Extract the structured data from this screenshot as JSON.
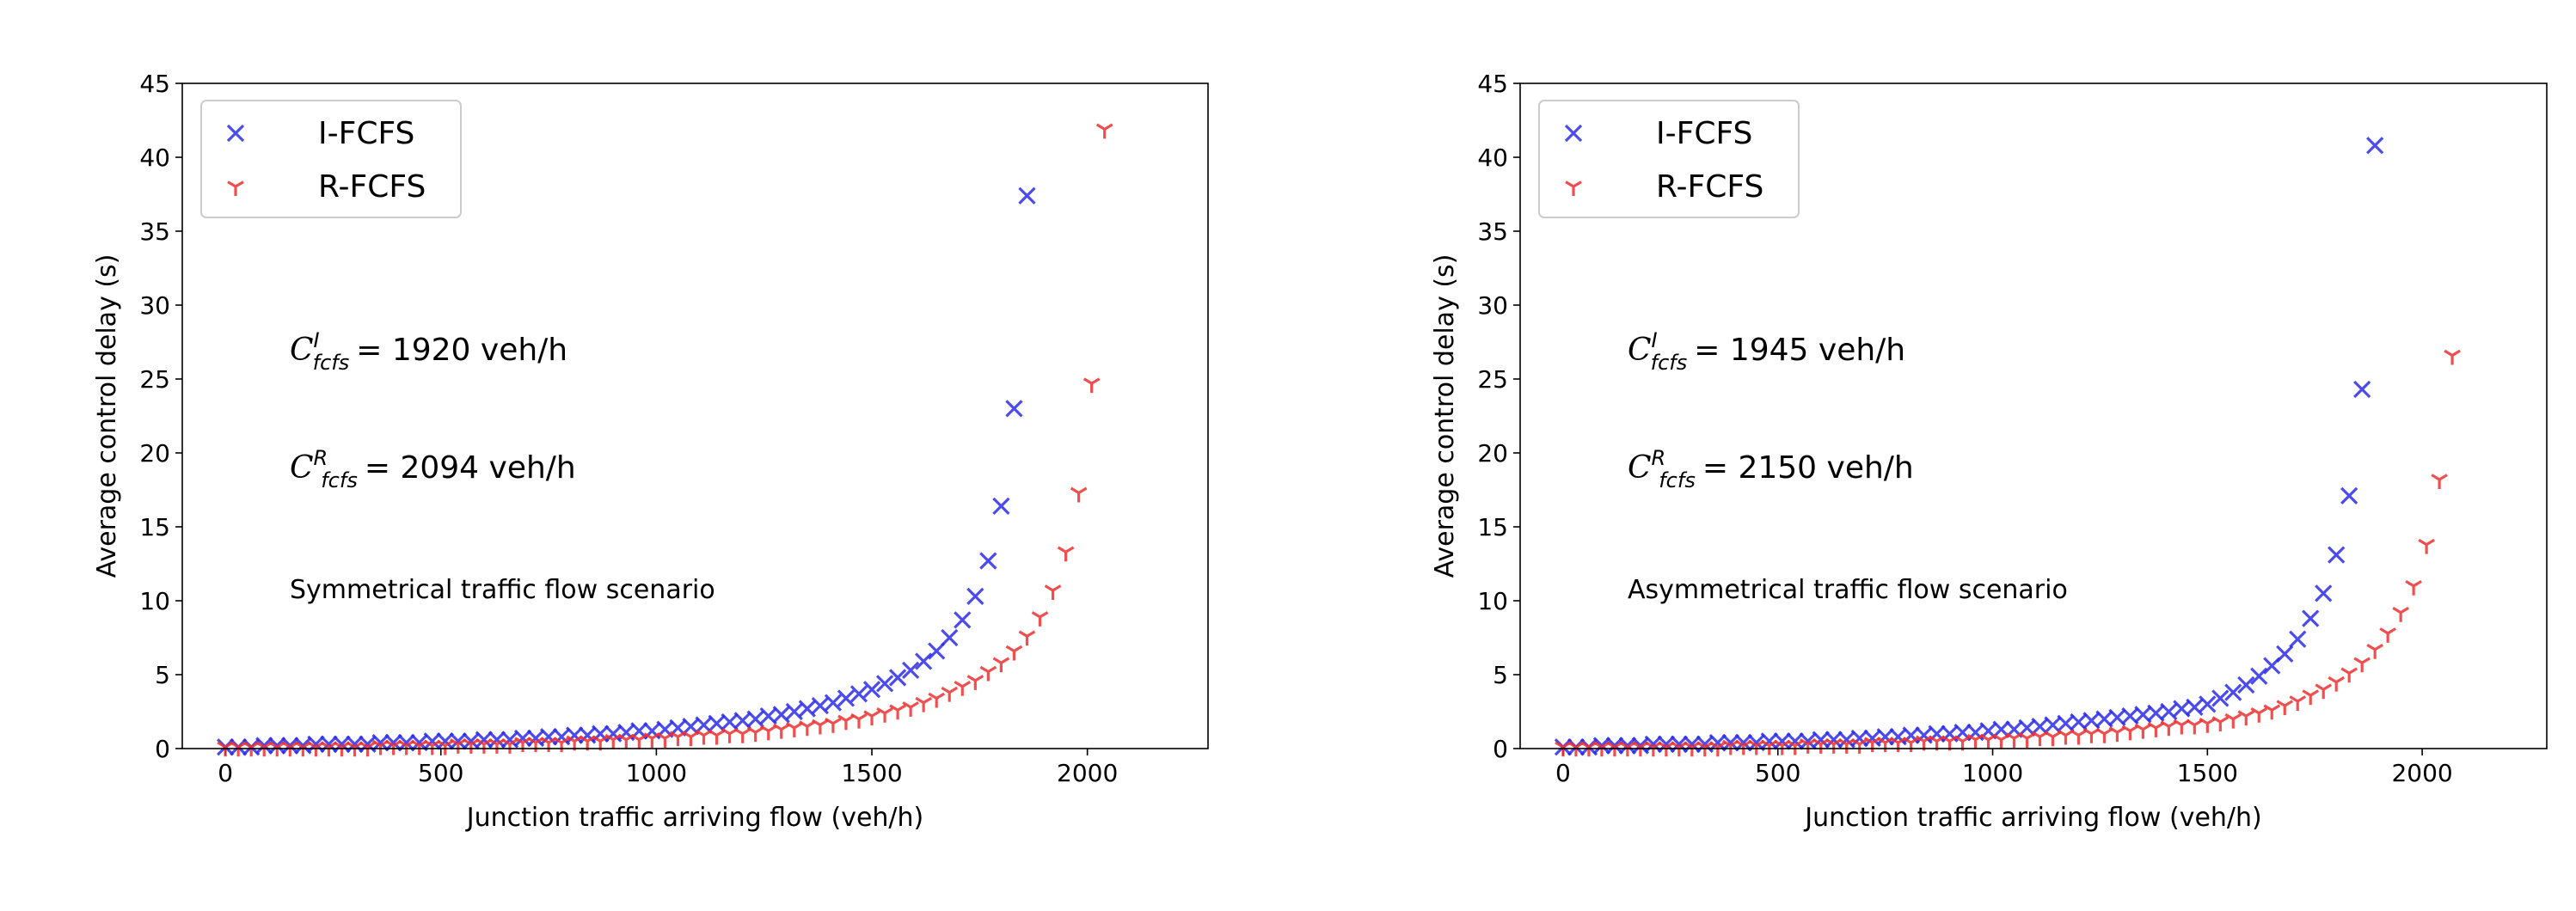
{
  "chart_data": [
    {
      "type": "scatter",
      "xlabel": "Junction traffic arriving flow (veh/h)",
      "ylabel": "Average control delay (s)",
      "x": [
        0,
        30,
        60,
        90,
        120,
        150,
        180,
        210,
        240,
        270,
        300,
        330,
        360,
        390,
        420,
        450,
        480,
        510,
        540,
        570,
        600,
        630,
        660,
        690,
        720,
        750,
        780,
        810,
        840,
        870,
        900,
        930,
        960,
        990,
        1020,
        1050,
        1080,
        1110,
        1140,
        1170,
        1200,
        1230,
        1260,
        1290,
        1320,
        1350,
        1380,
        1410,
        1440,
        1470,
        1500,
        1530,
        1560,
        1590,
        1620,
        1650,
        1680,
        1710,
        1740,
        1770,
        1800,
        1830,
        1860,
        1890,
        1920,
        1950,
        1980,
        2010,
        2040
      ],
      "series": [
        {
          "name": "I-FCFS",
          "color": "#2b2bec",
          "marker": "x",
          "values": [
            0.1,
            0.1,
            0.1,
            0.2,
            0.2,
            0.2,
            0.2,
            0.3,
            0.3,
            0.3,
            0.3,
            0.3,
            0.4,
            0.4,
            0.4,
            0.4,
            0.5,
            0.5,
            0.5,
            0.5,
            0.6,
            0.6,
            0.6,
            0.7,
            0.7,
            0.8,
            0.8,
            0.9,
            0.9,
            1.0,
            1.0,
            1.1,
            1.2,
            1.2,
            1.3,
            1.4,
            1.5,
            1.6,
            1.7,
            1.8,
            1.9,
            2.0,
            2.2,
            2.3,
            2.5,
            2.7,
            2.9,
            3.1,
            3.4,
            3.7,
            4.0,
            4.4,
            4.8,
            5.3,
            5.9,
            6.6,
            7.5,
            8.7,
            10.3,
            12.7,
            16.4,
            23.0,
            37.4,
            null,
            null,
            null,
            null,
            null,
            null
          ]
        },
        {
          "name": "R-FCFS",
          "color": "#ee3030",
          "marker": "tri_down",
          "values": [
            0.1,
            0.1,
            0.1,
            0.1,
            0.1,
            0.1,
            0.1,
            0.1,
            0.1,
            0.1,
            0.1,
            0.1,
            0.2,
            0.2,
            0.2,
            0.2,
            0.2,
            0.2,
            0.3,
            0.3,
            0.3,
            0.3,
            0.3,
            0.4,
            0.4,
            0.4,
            0.4,
            0.5,
            0.5,
            0.5,
            0.6,
            0.6,
            0.6,
            0.7,
            0.7,
            0.8,
            0.8,
            0.9,
            0.9,
            1.0,
            1.0,
            1.1,
            1.2,
            1.3,
            1.4,
            1.5,
            1.6,
            1.7,
            1.9,
            2.0,
            2.2,
            2.4,
            2.6,
            2.8,
            3.1,
            3.4,
            3.8,
            4.2,
            4.6,
            5.2,
            5.8,
            6.6,
            7.6,
            8.9,
            10.7,
            13.3,
            17.3,
            24.7,
            41.9
          ]
        }
      ],
      "xlim": [
        -100,
        2280
      ],
      "ylim": [
        0,
        45
      ],
      "xticks": [
        0,
        500,
        1000,
        1500,
        2000
      ],
      "yticks": [
        0,
        5,
        10,
        15,
        20,
        25,
        30,
        35,
        40,
        45
      ],
      "legend": "upper left",
      "annotations": [
        {
          "symbol": "C",
          "sup": "I",
          "sub": "fcfs",
          "text": "= 1920 veh/h"
        },
        {
          "symbol": "C",
          "sup": "R",
          "sub": "fcfs",
          "text": "= 2094 veh/h"
        },
        {
          "text": "Symmetrical traffic flow scenario"
        }
      ]
    },
    {
      "type": "scatter",
      "xlabel": "Junction traffic arriving flow (veh/h)",
      "ylabel": "Average control delay (s)",
      "x": [
        0,
        30,
        60,
        90,
        120,
        150,
        180,
        210,
        240,
        270,
        300,
        330,
        360,
        390,
        420,
        450,
        480,
        510,
        540,
        570,
        600,
        630,
        660,
        690,
        720,
        750,
        780,
        810,
        840,
        870,
        900,
        930,
        960,
        990,
        1020,
        1050,
        1080,
        1110,
        1140,
        1170,
        1200,
        1230,
        1260,
        1290,
        1320,
        1350,
        1380,
        1410,
        1440,
        1470,
        1500,
        1530,
        1560,
        1590,
        1620,
        1650,
        1680,
        1710,
        1740,
        1770,
        1800,
        1830,
        1860,
        1890,
        1920,
        1950,
        1980,
        2010,
        2040,
        2070
      ],
      "series": [
        {
          "name": "I-FCFS",
          "color": "#2b2bec",
          "marker": "x",
          "values": [
            0.1,
            0.1,
            0.1,
            0.2,
            0.2,
            0.2,
            0.2,
            0.3,
            0.3,
            0.3,
            0.3,
            0.3,
            0.4,
            0.4,
            0.4,
            0.4,
            0.5,
            0.5,
            0.5,
            0.5,
            0.6,
            0.6,
            0.6,
            0.7,
            0.7,
            0.8,
            0.8,
            0.9,
            0.9,
            1.0,
            1.0,
            1.1,
            1.1,
            1.2,
            1.3,
            1.3,
            1.4,
            1.5,
            1.6,
            1.7,
            1.8,
            1.9,
            2.0,
            2.1,
            2.2,
            2.3,
            2.4,
            2.5,
            2.7,
            2.8,
            3.0,
            3.4,
            3.8,
            4.3,
            4.9,
            5.6,
            6.4,
            7.4,
            8.8,
            10.5,
            13.1,
            17.1,
            24.3,
            40.8,
            null,
            null,
            null,
            null,
            null,
            null
          ]
        },
        {
          "name": "R-FCFS",
          "color": "#ee3030",
          "marker": "tri_down",
          "values": [
            0.1,
            0.1,
            0.1,
            0.1,
            0.1,
            0.1,
            0.1,
            0.1,
            0.1,
            0.1,
            0.1,
            0.1,
            0.1,
            0.2,
            0.2,
            0.2,
            0.2,
            0.2,
            0.2,
            0.3,
            0.3,
            0.3,
            0.3,
            0.3,
            0.4,
            0.4,
            0.4,
            0.4,
            0.5,
            0.5,
            0.5,
            0.5,
            0.6,
            0.6,
            0.6,
            0.7,
            0.7,
            0.8,
            0.8,
            0.9,
            0.9,
            1.0,
            1.0,
            1.1,
            1.2,
            1.3,
            1.4,
            1.5,
            1.6,
            1.6,
            1.7,
            1.8,
            2.0,
            2.2,
            2.4,
            2.6,
            2.9,
            3.2,
            3.6,
            4.0,
            4.5,
            5.1,
            5.8,
            6.7,
            7.8,
            9.2,
            11.0,
            13.8,
            18.2,
            26.6
          ]
        }
      ],
      "xlim": [
        -100,
        2290
      ],
      "ylim": [
        0,
        45
      ],
      "xticks": [
        0,
        500,
        1000,
        1500,
        2000
      ],
      "yticks": [
        0,
        5,
        10,
        15,
        20,
        25,
        30,
        35,
        40,
        45
      ],
      "legend": "upper left",
      "annotations": [
        {
          "symbol": "C",
          "sup": "I",
          "sub": "fcfs",
          "text": "= 1945 veh/h"
        },
        {
          "symbol": "C",
          "sup": "R",
          "sub": "fcfs",
          "text": "= 2150 veh/h"
        },
        {
          "text": "Asymmetrical traffic flow scenario"
        }
      ]
    }
  ]
}
